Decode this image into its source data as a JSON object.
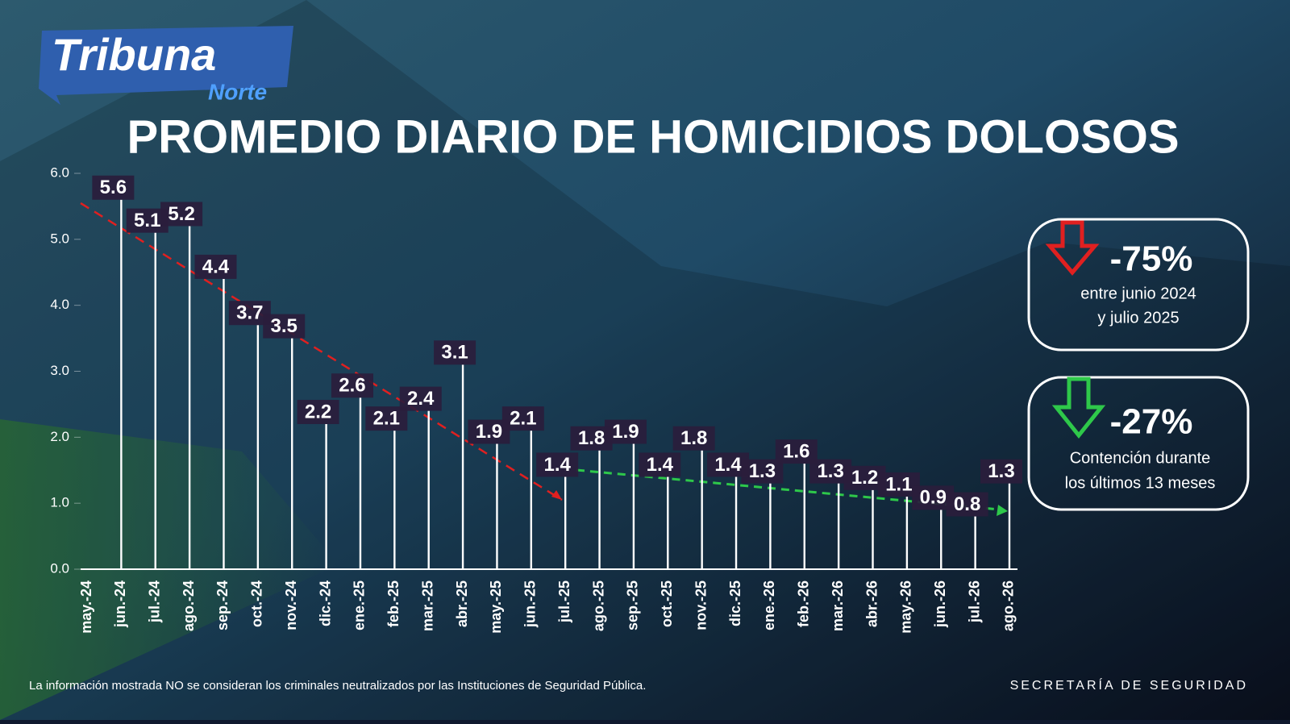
{
  "logo": {
    "name": "Tribuna",
    "sub": "Norte"
  },
  "chart_data": {
    "type": "bar",
    "title": "PROMEDIO DIARIO DE HOMICIDIOS DOLOSOS",
    "categories": [
      "may.-24",
      "jun.-24",
      "jul.-24",
      "ago.-24",
      "sep.-24",
      "oct.-24",
      "nov.-24",
      "dic.-24",
      "ene.-25",
      "feb.-25",
      "mar.-25",
      "abr.-25",
      "may.-25",
      "jun.-25",
      "jul.-25",
      "ago.-25",
      "sep.-25",
      "oct.-25",
      "nov.-25",
      "dic.-25",
      "ene.-26",
      "feb.-26",
      "mar.-26",
      "abr.-26",
      "may.-26",
      "jun.-26",
      "jul.-26",
      "ago.-26"
    ],
    "values": [
      null,
      5.6,
      5.1,
      5.2,
      4.4,
      3.7,
      3.5,
      2.2,
      2.6,
      2.1,
      2.4,
      3.1,
      1.9,
      2.1,
      1.4,
      1.8,
      1.9,
      1.4,
      1.8,
      1.4,
      1.3,
      1.6,
      1.3,
      1.2,
      1.1,
      0.9,
      0.8,
      1.3
    ],
    "color": "#ffffff",
    "ylim": [
      0,
      6
    ],
    "yticks": [
      {
        "value": 0,
        "label": "0.0"
      },
      {
        "value": 1,
        "label": "1.0"
      },
      {
        "value": 2,
        "label": "2.0"
      },
      {
        "value": 3,
        "label": "3.0"
      },
      {
        "value": 4,
        "label": "4.0"
      },
      {
        "value": 5,
        "label": "5.0"
      },
      {
        "value": 6,
        "label": "6.0"
      }
    ]
  },
  "panels": [
    {
      "value": "-75%",
      "lines": [
        "entre junio 2024",
        "y julio 2025"
      ]
    },
    {
      "value": "-27%",
      "lines": [
        "Contención durante",
        "los últimos 13 meses"
      ]
    }
  ],
  "footer": {
    "note": "La información mostrada NO se consideran los criminales neutralizados por las Instituciones de Seguridad Pública.",
    "source": "SECRETARÍA DE SEGURIDAD"
  }
}
